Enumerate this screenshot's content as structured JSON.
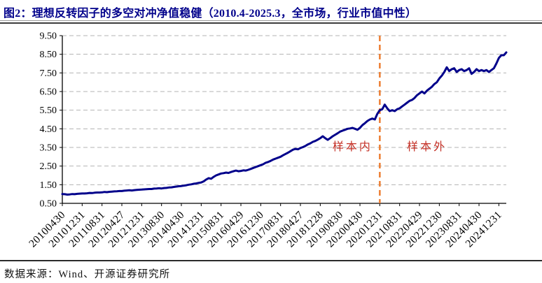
{
  "header": {
    "title": "图2：理想反转因子的多空对冲净值稳健（2010.4-2025.3，全市场，行业市值中性）",
    "title_color": "#00008B"
  },
  "footer": {
    "source": "数据来源：Wind、开源证券研究所"
  },
  "chart_data": {
    "type": "line",
    "title": "理想反转因子的多空对冲净值（2010.4-2025.3，全市场，行业市值中性）",
    "x_start": "2010-04",
    "x_end": "2025-03",
    "x_frequency": "monthly",
    "x_tick_labels": [
      "20100430",
      "20101231",
      "20110831",
      "20120427",
      "20121231",
      "20130830",
      "20140430",
      "20141231",
      "20150831",
      "20160429",
      "20161230",
      "20170831",
      "20180427",
      "20181228",
      "20190830",
      "20200430",
      "20201231",
      "20210831",
      "20220429",
      "20221230",
      "20230831",
      "20240430",
      "20241231"
    ],
    "x_tick_indices": [
      0,
      8,
      16,
      24,
      32,
      40,
      48,
      56,
      64,
      72,
      80,
      88,
      96,
      104,
      112,
      120,
      128,
      136,
      144,
      152,
      160,
      168,
      176
    ],
    "y_ticks": [
      "0.50",
      "1.50",
      "2.50",
      "3.50",
      "4.50",
      "5.50",
      "6.50",
      "7.50",
      "8.50",
      "9.50"
    ],
    "ylim": [
      0.5,
      9.5
    ],
    "grid": "horizontal-dashed",
    "legend": "none",
    "series": [
      {
        "name": "理想反转因子多空对冲净值",
        "color": "#00008B",
        "values": [
          1.0,
          0.99,
          0.97,
          0.98,
          1.0,
          0.99,
          1.01,
          1.02,
          1.03,
          1.03,
          1.04,
          1.06,
          1.05,
          1.07,
          1.08,
          1.08,
          1.09,
          1.11,
          1.1,
          1.12,
          1.13,
          1.14,
          1.15,
          1.16,
          1.16,
          1.18,
          1.19,
          1.2,
          1.19,
          1.21,
          1.22,
          1.23,
          1.24,
          1.25,
          1.26,
          1.27,
          1.27,
          1.29,
          1.3,
          1.31,
          1.3,
          1.32,
          1.33,
          1.35,
          1.36,
          1.38,
          1.4,
          1.42,
          1.43,
          1.45,
          1.47,
          1.5,
          1.52,
          1.55,
          1.57,
          1.6,
          1.62,
          1.68,
          1.78,
          1.85,
          1.82,
          1.92,
          2.0,
          2.05,
          2.1,
          2.12,
          2.15,
          2.13,
          2.18,
          2.22,
          2.26,
          2.22,
          2.24,
          2.27,
          2.26,
          2.3,
          2.35,
          2.4,
          2.45,
          2.5,
          2.55,
          2.6,
          2.68,
          2.72,
          2.78,
          2.85,
          2.9,
          2.95,
          3.0,
          3.08,
          3.15,
          3.22,
          3.3,
          3.38,
          3.42,
          3.4,
          3.47,
          3.52,
          3.58,
          3.66,
          3.72,
          3.8,
          3.85,
          3.92,
          4.0,
          4.1,
          4.0,
          3.91,
          4.0,
          4.1,
          4.18,
          4.26,
          4.35,
          4.4,
          4.45,
          4.5,
          4.52,
          4.55,
          4.5,
          4.45,
          4.55,
          4.7,
          4.8,
          4.92,
          5.0,
          5.05,
          5.0,
          5.3,
          5.5,
          5.55,
          5.8,
          5.6,
          5.45,
          5.5,
          5.45,
          5.55,
          5.6,
          5.7,
          5.8,
          5.9,
          6.0,
          6.05,
          6.15,
          6.3,
          6.4,
          6.5,
          6.4,
          6.55,
          6.65,
          6.75,
          6.9,
          7.0,
          7.2,
          7.35,
          7.55,
          7.8,
          7.6,
          7.7,
          7.75,
          7.55,
          7.65,
          7.7,
          7.6,
          7.65,
          7.75,
          7.45,
          7.55,
          7.7,
          7.6,
          7.65,
          7.6,
          7.65,
          7.55,
          7.65,
          7.75,
          8.0,
          8.3,
          8.45,
          8.45,
          8.6
        ]
      }
    ],
    "split_line": {
      "label": "in-sample/out-of-sample divider",
      "x_index": 128,
      "x_date": "20201231",
      "color": "#ED7D31",
      "style": "dashed"
    },
    "annotations": [
      {
        "text": "样本内",
        "x_index": 117,
        "y": 3.35,
        "color": "#C43026"
      },
      {
        "text": "样本外",
        "x_index": 147,
        "y": 3.35,
        "color": "#C43026"
      }
    ]
  }
}
